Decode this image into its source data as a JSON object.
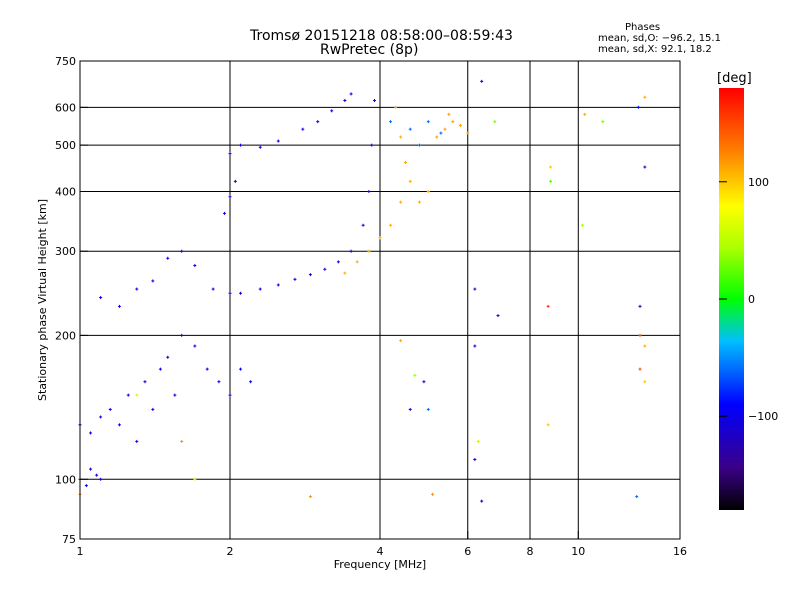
{
  "header": {
    "title_line1": "Tromsø 20151218 08:58:00–08:59:43",
    "title_line2": "RwPretec (8p)"
  },
  "stats": {
    "heading": "Phases",
    "line_o": "mean, sd,O: −96.2, 15.1",
    "line_x": "mean, sd,X:  92.1, 18.2"
  },
  "colorbar": {
    "unit": "[deg]",
    "ticks": [
      {
        "value": 100,
        "label": "100"
      },
      {
        "value": 0,
        "label": "0"
      },
      {
        "value": -100,
        "label": "−100"
      }
    ],
    "range": [
      -180,
      180
    ]
  },
  "chart_data": {
    "type": "scatter",
    "x_scale": "log",
    "y_scale": "log",
    "xlabel": "Frequency [MHz]",
    "ylabel": "Stationary phase Virtual Height [km]",
    "xlim": [
      1,
      16
    ],
    "ylim": [
      75,
      750
    ],
    "grid": true,
    "x_ticks": [
      1,
      2,
      4,
      6,
      8,
      10,
      16
    ],
    "x_tick_labels": [
      "1",
      "2",
      "4",
      "6",
      "8",
      "10",
      "16"
    ],
    "x_grid": [
      2,
      4,
      6,
      8,
      10
    ],
    "y_ticks": [
      75,
      100,
      200,
      300,
      400,
      500,
      600,
      750
    ],
    "y_tick_labels": [
      "75",
      "100",
      "200",
      "300",
      "400",
      "500",
      "600",
      "750"
    ],
    "y_grid": [
      100,
      200,
      300,
      400,
      500,
      600
    ],
    "series": [
      {
        "phase": -100,
        "points": [
          [
            1.0,
            130
          ],
          [
            1.05,
            125
          ],
          [
            1.1,
            135
          ],
          [
            1.15,
            140
          ],
          [
            1.2,
            130
          ],
          [
            1.25,
            150
          ],
          [
            1.3,
            120
          ],
          [
            1.35,
            160
          ],
          [
            1.4,
            140
          ],
          [
            1.45,
            170
          ],
          [
            1.5,
            180
          ],
          [
            1.55,
            150
          ],
          [
            1.6,
            200
          ],
          [
            1.7,
            190
          ],
          [
            1.8,
            170
          ],
          [
            1.9,
            160
          ],
          [
            2.0,
            150
          ],
          [
            2.1,
            170
          ],
          [
            2.2,
            160
          ]
        ]
      },
      {
        "phase": -100,
        "points": [
          [
            1.1,
            240
          ],
          [
            1.2,
            230
          ],
          [
            1.3,
            250
          ],
          [
            1.4,
            260
          ],
          [
            1.5,
            290
          ],
          [
            1.6,
            300
          ],
          [
            1.7,
            280
          ]
        ]
      },
      {
        "phase": -100,
        "points": [
          [
            1.85,
            250
          ],
          [
            2.0,
            245
          ],
          [
            2.1,
            245
          ],
          [
            2.3,
            250
          ],
          [
            2.5,
            255
          ],
          [
            2.7,
            262
          ],
          [
            2.9,
            268
          ],
          [
            3.1,
            275
          ],
          [
            3.3,
            285
          ],
          [
            3.5,
            300
          ],
          [
            3.7,
            340
          ],
          [
            3.8,
            400
          ],
          [
            3.85,
            500
          ],
          [
            3.9,
            620
          ]
        ]
      },
      {
        "phase": -100,
        "points": [
          [
            1.95,
            360
          ],
          [
            2.0,
            390
          ],
          [
            2.05,
            420
          ],
          [
            2.0,
            480
          ],
          [
            2.1,
            500
          ],
          [
            2.3,
            495
          ],
          [
            2.5,
            510
          ],
          [
            2.8,
            540
          ],
          [
            3.0,
            560
          ],
          [
            3.2,
            590
          ],
          [
            3.4,
            620
          ],
          [
            3.5,
            640
          ]
        ]
      },
      {
        "phase": -105,
        "points": [
          [
            1.0,
            100
          ],
          [
            1.03,
            97
          ],
          [
            1.05,
            105
          ],
          [
            1.08,
            102
          ],
          [
            1.1,
            100
          ]
        ]
      },
      {
        "phase": 110,
        "points": [
          [
            3.4,
            270
          ],
          [
            3.6,
            285
          ],
          [
            3.8,
            300
          ],
          [
            4.0,
            320
          ],
          [
            4.2,
            340
          ],
          [
            4.4,
            380
          ],
          [
            4.6,
            420
          ],
          [
            4.5,
            460
          ],
          [
            4.4,
            520
          ],
          [
            4.3,
            600
          ],
          [
            4.8,
            380
          ],
          [
            5.0,
            400
          ]
        ]
      },
      {
        "phase": 115,
        "points": [
          [
            5.4,
            540
          ],
          [
            5.6,
            560
          ],
          [
            5.8,
            550
          ],
          [
            6.0,
            530
          ],
          [
            5.2,
            520
          ],
          [
            5.5,
            580
          ]
        ]
      },
      {
        "phase": -60,
        "points": [
          [
            4.2,
            560
          ],
          [
            4.6,
            540
          ],
          [
            5.0,
            560
          ],
          [
            5.3,
            530
          ],
          [
            4.8,
            500
          ]
        ]
      }
    ],
    "scattered_points": [
      {
        "x": 6.4,
        "y": 680,
        "phase": -100
      },
      {
        "x": 6.8,
        "y": 560,
        "phase": 30
      },
      {
        "x": 8.8,
        "y": 450,
        "phase": 100
      },
      {
        "x": 8.8,
        "y": 420,
        "phase": 20
      },
      {
        "x": 10.2,
        "y": 340,
        "phase": 40
      },
      {
        "x": 10.3,
        "y": 580,
        "phase": 110
      },
      {
        "x": 11.2,
        "y": 560,
        "phase": 30
      },
      {
        "x": 13.2,
        "y": 600,
        "phase": -90
      },
      {
        "x": 13.6,
        "y": 630,
        "phase": 110
      },
      {
        "x": 13.6,
        "y": 450,
        "phase": -130
      },
      {
        "x": 6.2,
        "y": 250,
        "phase": -120
      },
      {
        "x": 6.9,
        "y": 220,
        "phase": -100
      },
      {
        "x": 8.7,
        "y": 230,
        "phase": 160
      },
      {
        "x": 13.3,
        "y": 230,
        "phase": -130
      },
      {
        "x": 13.3,
        "y": 200,
        "phase": 150
      },
      {
        "x": 13.6,
        "y": 190,
        "phase": 110
      },
      {
        "x": 13.3,
        "y": 170,
        "phase": 150
      },
      {
        "x": 13.6,
        "y": 160,
        "phase": 100
      },
      {
        "x": 8.7,
        "y": 130,
        "phase": 100
      },
      {
        "x": 6.3,
        "y": 120,
        "phase": 50
      },
      {
        "x": 6.2,
        "y": 110,
        "phase": -110
      },
      {
        "x": 6.4,
        "y": 90,
        "phase": -100
      },
      {
        "x": 13.1,
        "y": 92,
        "phase": -60
      },
      {
        "x": 5.1,
        "y": 93,
        "phase": 120
      },
      {
        "x": 2.9,
        "y": 92,
        "phase": 120
      },
      {
        "x": 4.7,
        "y": 165,
        "phase": 40
      },
      {
        "x": 4.9,
        "y": 160,
        "phase": -100
      },
      {
        "x": 5.0,
        "y": 140,
        "phase": -60
      },
      {
        "x": 4.6,
        "y": 140,
        "phase": -120
      },
      {
        "x": 4.4,
        "y": 195,
        "phase": 110
      },
      {
        "x": 6.2,
        "y": 190,
        "phase": -100
      },
      {
        "x": 1.6,
        "y": 120,
        "phase": 120
      },
      {
        "x": 1.7,
        "y": 100,
        "phase": 60
      },
      {
        "x": 1.0,
        "y": 93,
        "phase": 120
      },
      {
        "x": 1.3,
        "y": 150,
        "phase": 60
      }
    ]
  }
}
